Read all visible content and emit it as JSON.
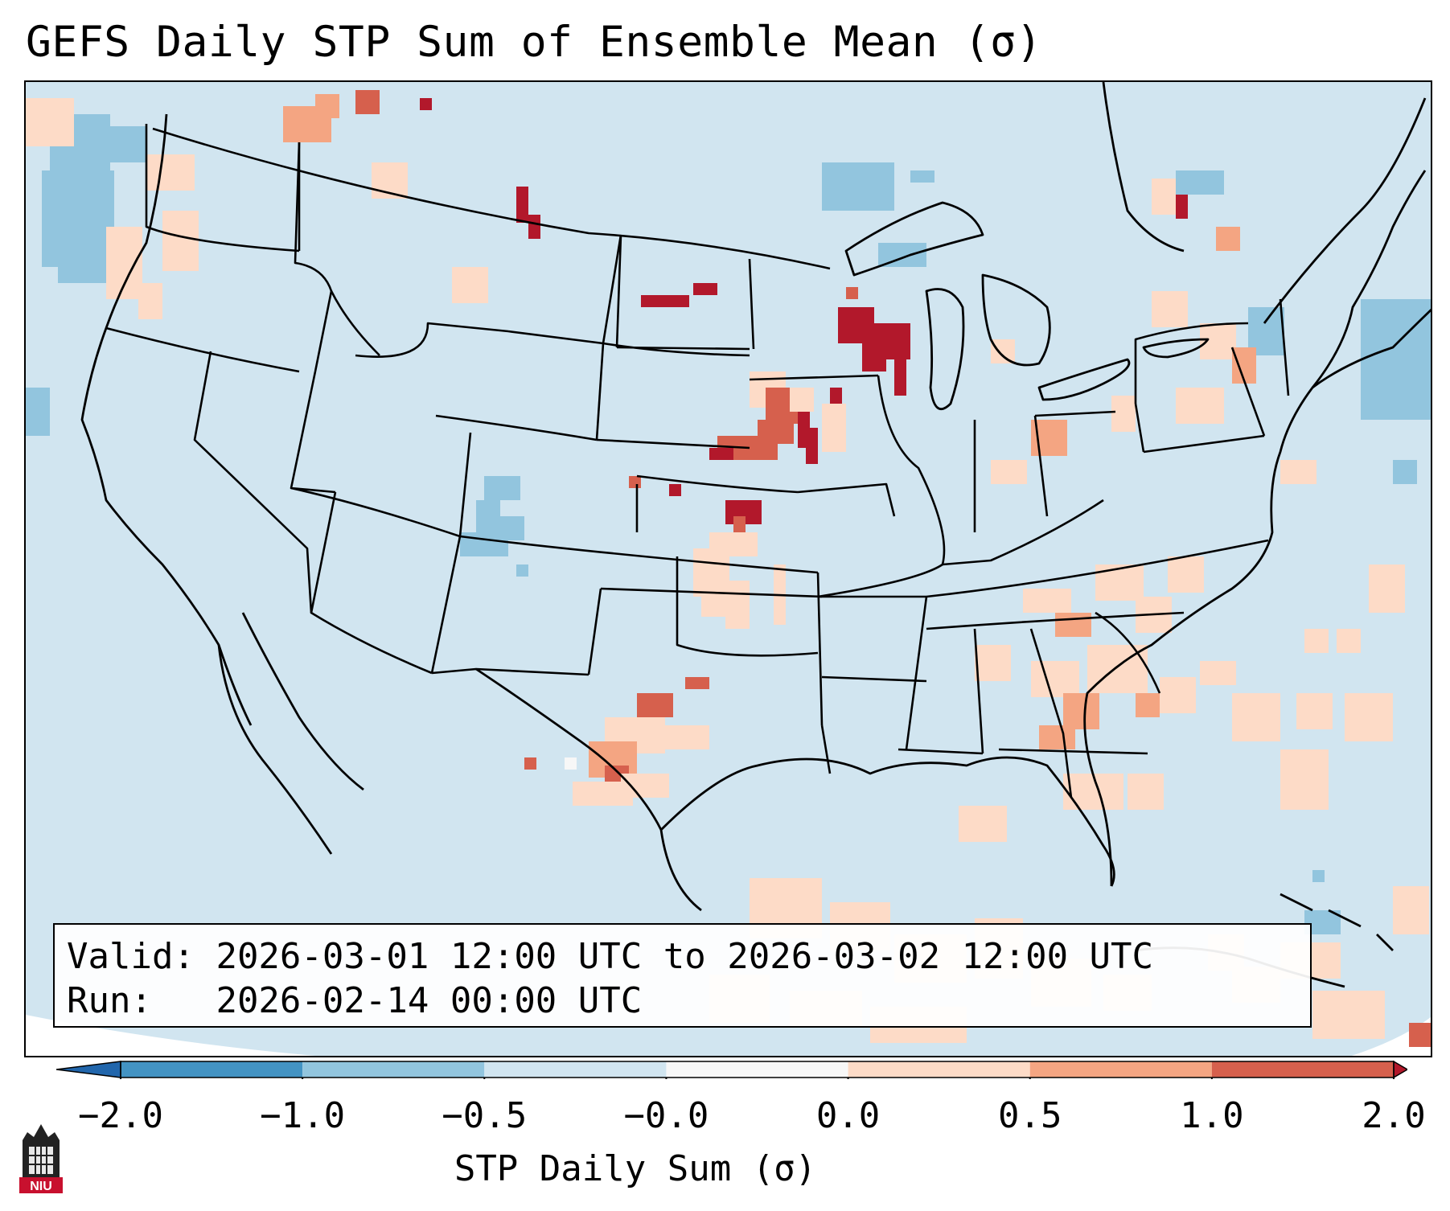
{
  "title": "GEFS Daily STP Sum of Ensemble Mean (σ)",
  "info": {
    "valid_label": "Valid:",
    "valid_value": "2026-03-01 12:00 UTC to 2026-03-02 12:00 UTC",
    "run_label": "Run:",
    "run_value": "2026-02-14 00:00 UTC"
  },
  "colorbar": {
    "label": "STP Daily Sum (σ)",
    "ticks": [
      "−2.0",
      "−1.0",
      "−0.5",
      "−0.0",
      "0.0",
      "0.5",
      "1.0",
      "2.0"
    ],
    "bins": [
      {
        "range": "-2.0 to -1.0",
        "color": "#4393c3"
      },
      {
        "range": "-1.0 to -0.5",
        "color": "#92c5de"
      },
      {
        "range": "-0.5 to 0.0",
        "color": "#d1e5f0"
      },
      {
        "range": "0.0",
        "color": "#f7f7f7"
      },
      {
        "range": "0.0 to 0.5",
        "color": "#fddbc7"
      },
      {
        "range": "0.5 to 1.0",
        "color": "#f4a582"
      },
      {
        "range": "1.0 to 2.0",
        "color": "#d6604d"
      }
    ],
    "under_color": "#2166ac",
    "over_color": "#b2182b"
  },
  "map": {
    "region": "Contiguous United States",
    "background_color": "#d1e5f0",
    "boundary_color": "#000000"
  },
  "logo": {
    "text": "NIU",
    "color": "#c8102e",
    "icon": "university-tower-icon"
  }
}
